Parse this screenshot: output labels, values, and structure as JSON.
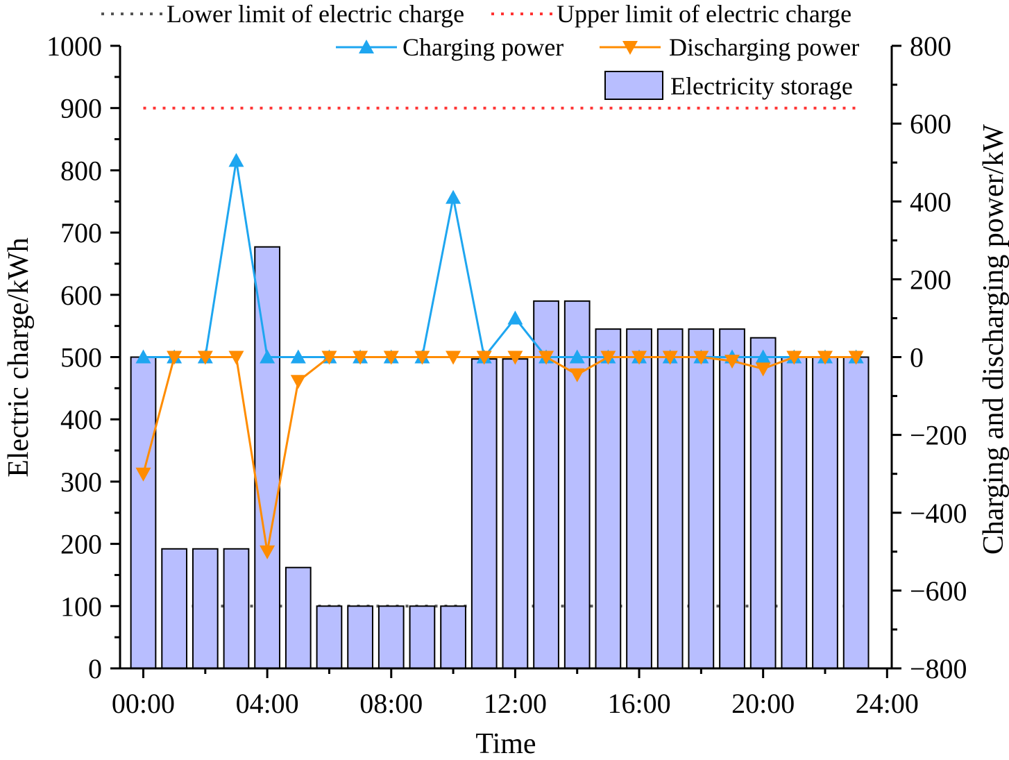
{
  "chart_data": {
    "type": "bar+line",
    "x_label": "Time",
    "y_left_label": "Electric charge/kWh",
    "y_right_label": "Charging and discharging power/kW",
    "x_ticks": [
      "00:00",
      "04:00",
      "08:00",
      "12:00",
      "16:00",
      "20:00",
      "24:00"
    ],
    "x_tick_values": [
      0,
      4,
      8,
      12,
      16,
      20,
      24
    ],
    "x_range": [
      -0.75,
      24.15
    ],
    "y_left_ticks": [
      "0",
      "100",
      "200",
      "300",
      "400",
      "500",
      "600",
      "700",
      "800",
      "900",
      "1000"
    ],
    "y_left_range": [
      0,
      1000
    ],
    "y_right_ticks": [
      "−800",
      "−600",
      "−400",
      "−200",
      "0",
      "200",
      "400",
      "600",
      "800"
    ],
    "y_right_range": [
      -800,
      800
    ],
    "hours": [
      0,
      1,
      2,
      3,
      4,
      5,
      6,
      7,
      8,
      9,
      10,
      11,
      12,
      13,
      14,
      15,
      16,
      17,
      18,
      19,
      20,
      21,
      22,
      23
    ],
    "series": [
      {
        "name": "Electricity storage",
        "type": "bar",
        "axis": "left",
        "color": "#b8beff",
        "values": [
          500,
          192,
          192,
          192,
          677,
          162,
          100,
          100,
          100,
          100,
          100,
          497,
          497,
          590,
          590,
          545,
          545,
          545,
          545,
          545,
          531,
          500,
          500,
          500
        ]
      },
      {
        "name": "Charging power",
        "type": "line",
        "axis": "right",
        "marker": "triangle-up",
        "color": "#1ea6f0",
        "values": [
          0,
          0,
          0,
          505,
          0,
          0,
          0,
          0,
          0,
          0,
          410,
          0,
          100,
          0,
          0,
          0,
          0,
          0,
          0,
          0,
          0,
          0,
          0,
          0
        ]
      },
      {
        "name": "Discharging power",
        "type": "line",
        "axis": "right",
        "marker": "triangle-down",
        "color": "#ff8c00",
        "values": [
          -300,
          0,
          0,
          0,
          -500,
          -62,
          0,
          0,
          0,
          0,
          0,
          0,
          0,
          0,
          -45,
          0,
          0,
          0,
          0,
          -10,
          -30,
          0,
          0,
          0
        ]
      },
      {
        "name": "Lower limit of electric charge",
        "type": "hline",
        "axis": "left",
        "style": "dotted",
        "color": "#555555",
        "value": 100,
        "x_extent": [
          0,
          23
        ]
      },
      {
        "name": "Upper limit of electric charge",
        "type": "hline",
        "axis": "left",
        "style": "dotted",
        "color": "#ff3333",
        "value": 900,
        "x_extent": [
          0,
          23
        ]
      }
    ],
    "legend": {
      "position": "top",
      "lower_limit_label": "Lower limit of electric charge",
      "upper_limit_label": "Upper limit of electric charge",
      "charging_label": "Charging power",
      "discharging_label": "Discharging power",
      "storage_label": "Electricity storage"
    }
  }
}
